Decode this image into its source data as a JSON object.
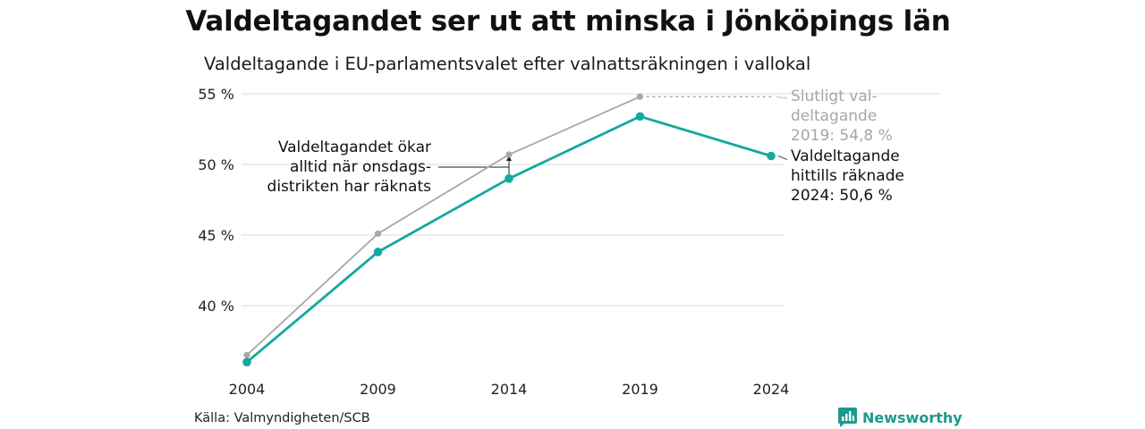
{
  "title": "Valdeltagandet ser ut att minska i Jönköpings län",
  "subtitle": "Valdeltagande i EU-parlamentsvalet efter valnattsräkningen i vallokal",
  "source": "Källa: Valmyndigheten/SCB",
  "brand": "Newsworthy",
  "colors": {
    "teal": "#13a89e",
    "gray": "#a8a8a8",
    "grid": "#e2e2e2"
  },
  "chart_data": {
    "type": "line",
    "x": [
      2004,
      2009,
      2014,
      2019,
      2024
    ],
    "xticks": [
      "2004",
      "2009",
      "2014",
      "2019",
      "2024"
    ],
    "yticks": [
      "40 %",
      "45 %",
      "50 %",
      "55 %"
    ],
    "ytick_values": [
      40,
      45,
      50,
      55
    ],
    "ylim": [
      36,
      55
    ],
    "grid": true,
    "series": [
      {
        "key": "final",
        "color": "#a8a8a8",
        "values": [
          36.5,
          45.1,
          50.7,
          54.8,
          null
        ]
      },
      {
        "key": "counted",
        "color": "#13a89e",
        "values": [
          36.0,
          43.8,
          49.0,
          53.4,
          50.6
        ]
      }
    ],
    "annotations": {
      "onsdag": [
        "Valdeltagandet ökar",
        "alltid när onsdags-",
        "distrikten har räknats"
      ],
      "final": [
        "Slutligt val-",
        "deltagande",
        "2019: 54,8 %"
      ],
      "counted": [
        "Valdeltagande",
        "hittills räknade",
        "2024: 50,6 %"
      ]
    }
  }
}
